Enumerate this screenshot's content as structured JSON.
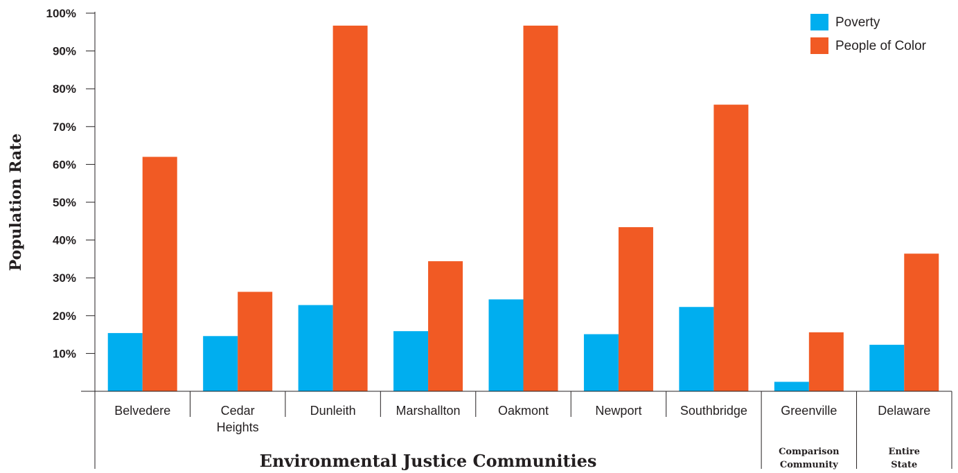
{
  "chart_data": {
    "type": "bar",
    "title": "",
    "ylabel": "Population Rate",
    "ylim": [
      0,
      100
    ],
    "yticks": [
      "10%",
      "20%",
      "30%",
      "40%",
      "50%",
      "60%",
      "70%",
      "80%",
      "90%",
      "100%"
    ],
    "categories": [
      [
        "Belvedere"
      ],
      [
        "Cedar",
        "Heights"
      ],
      [
        "Dunleith"
      ],
      [
        "Marshallton"
      ],
      [
        "Oakmont"
      ],
      [
        "Newport"
      ],
      [
        "Southbridge"
      ],
      [
        "Greenville"
      ],
      [
        "Delaware"
      ]
    ],
    "series": [
      {
        "name": "Poverty",
        "color": "#00aeef",
        "values": [
          15.4,
          14.6,
          22.8,
          15.9,
          24.3,
          15.1,
          22.3,
          2.5,
          12.3
        ]
      },
      {
        "name": "People of Color",
        "color": "#f15a24",
        "values": [
          62.0,
          26.3,
          96.7,
          34.4,
          96.7,
          43.4,
          75.8,
          15.6,
          36.4
        ]
      }
    ],
    "groups": [
      {
        "label": [
          "Environmental Justice Communities"
        ],
        "span": [
          0,
          6
        ]
      },
      {
        "label": [
          "Comparison",
          "Community"
        ],
        "span": [
          7,
          7
        ]
      },
      {
        "label": [
          "Entire",
          "State"
        ],
        "span": [
          8,
          8
        ]
      }
    ],
    "legend_position": "top-right",
    "grid": false
  }
}
